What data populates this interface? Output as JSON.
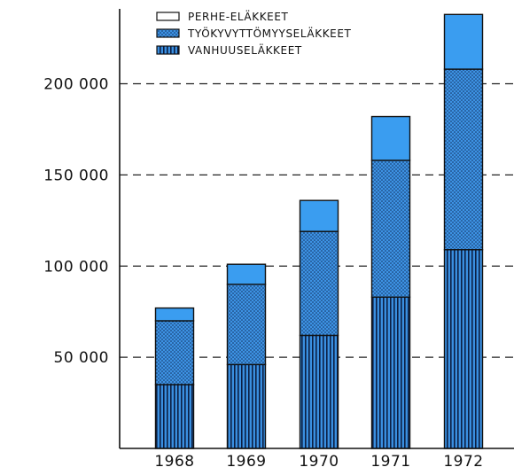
{
  "chart_data": {
    "type": "bar",
    "stacked": true,
    "categories": [
      "1968",
      "1969",
      "1970",
      "1971",
      "1972"
    ],
    "series": [
      {
        "name": "VANHUUSELÄKKEET",
        "values": [
          35000,
          46000,
          62000,
          83000,
          109000
        ],
        "fill": "vertical-stripes",
        "color": "#3a8fe0"
      },
      {
        "name": "TYÖKYVYTTÖMYYSELÄKKEET",
        "values": [
          35000,
          44000,
          57000,
          75000,
          99000
        ],
        "fill": "dots",
        "color": "#3d92e3"
      },
      {
        "name": "PERHE-ELÄKKEET",
        "values": [
          7000,
          11000,
          17000,
          24000,
          30000
        ],
        "fill": "solid",
        "color": "#3a9df0"
      }
    ],
    "yticks": [
      50000,
      100000,
      150000,
      200000
    ],
    "ytick_labels": [
      "50 000",
      "100 000",
      "150 000",
      "200 000"
    ],
    "ylim": [
      0,
      235000
    ],
    "grid": "horizontal-dashed",
    "legend_position": "top-left",
    "title": "",
    "xlabel": "",
    "ylabel": ""
  }
}
